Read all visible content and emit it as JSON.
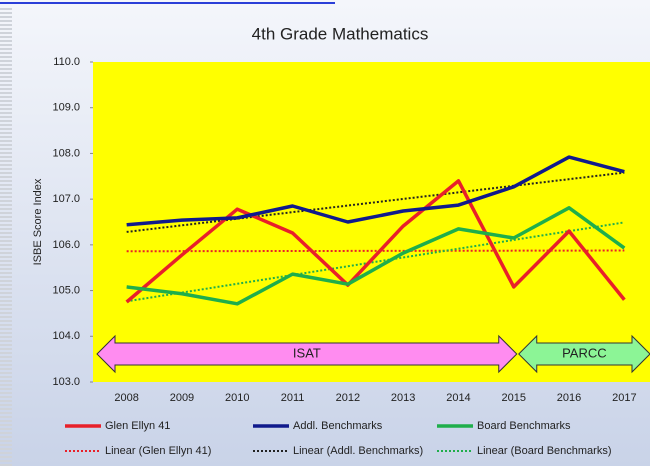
{
  "chart_data": {
    "type": "line",
    "title": "4th Grade Mathematics",
    "y_label": "ISBE Score Index",
    "categories": [
      "2008",
      "2009",
      "2010",
      "2011",
      "2012",
      "2013",
      "2014",
      "2015",
      "2016",
      "2017"
    ],
    "series": [
      {
        "name": "Glen Ellyn 41",
        "color": "#e8202a",
        "values": [
          104.75,
          105.78,
          106.78,
          106.26,
          105.12,
          106.41,
          107.4,
          105.08,
          106.3,
          104.8
        ]
      },
      {
        "name": "Addl. Benchmarks",
        "color": "#101a8c",
        "values": [
          106.44,
          106.54,
          106.59,
          106.85,
          106.5,
          106.74,
          106.87,
          107.27,
          107.92,
          107.6
        ]
      },
      {
        "name": "Board Benchmarks",
        "color": "#1fae4b",
        "values": [
          105.08,
          104.93,
          104.71,
          105.36,
          105.14,
          105.82,
          106.35,
          106.15,
          106.81,
          105.93
        ]
      }
    ],
    "trendlines": [
      {
        "name": "Linear (Glen Ellyn 41)",
        "series": 0
      },
      {
        "name": "Linear (Addl. Benchmarks)",
        "series": 1
      },
      {
        "name": "Linear (Board Benchmarks)",
        "series": 2
      }
    ],
    "annotations": [
      {
        "text": "ISAT",
        "color": "#ff8cf0"
      },
      {
        "text": "PARCC",
        "color": "#8cf596"
      }
    ],
    "ylim": [
      103,
      110
    ],
    "yticks": [
      {
        "value": 103,
        "label": "103.0"
      },
      {
        "value": 104,
        "label": "104.0"
      },
      {
        "value": 105,
        "label": "105.0"
      },
      {
        "value": 106,
        "label": "106.0"
      },
      {
        "value": 107,
        "label": "107.0"
      },
      {
        "value": 108,
        "label": "108.0"
      },
      {
        "value": 109,
        "label": "109.0"
      },
      {
        "value": 110,
        "label": "110.0"
      }
    ],
    "plot_color": "#ffff00",
    "legend": "bottom"
  }
}
